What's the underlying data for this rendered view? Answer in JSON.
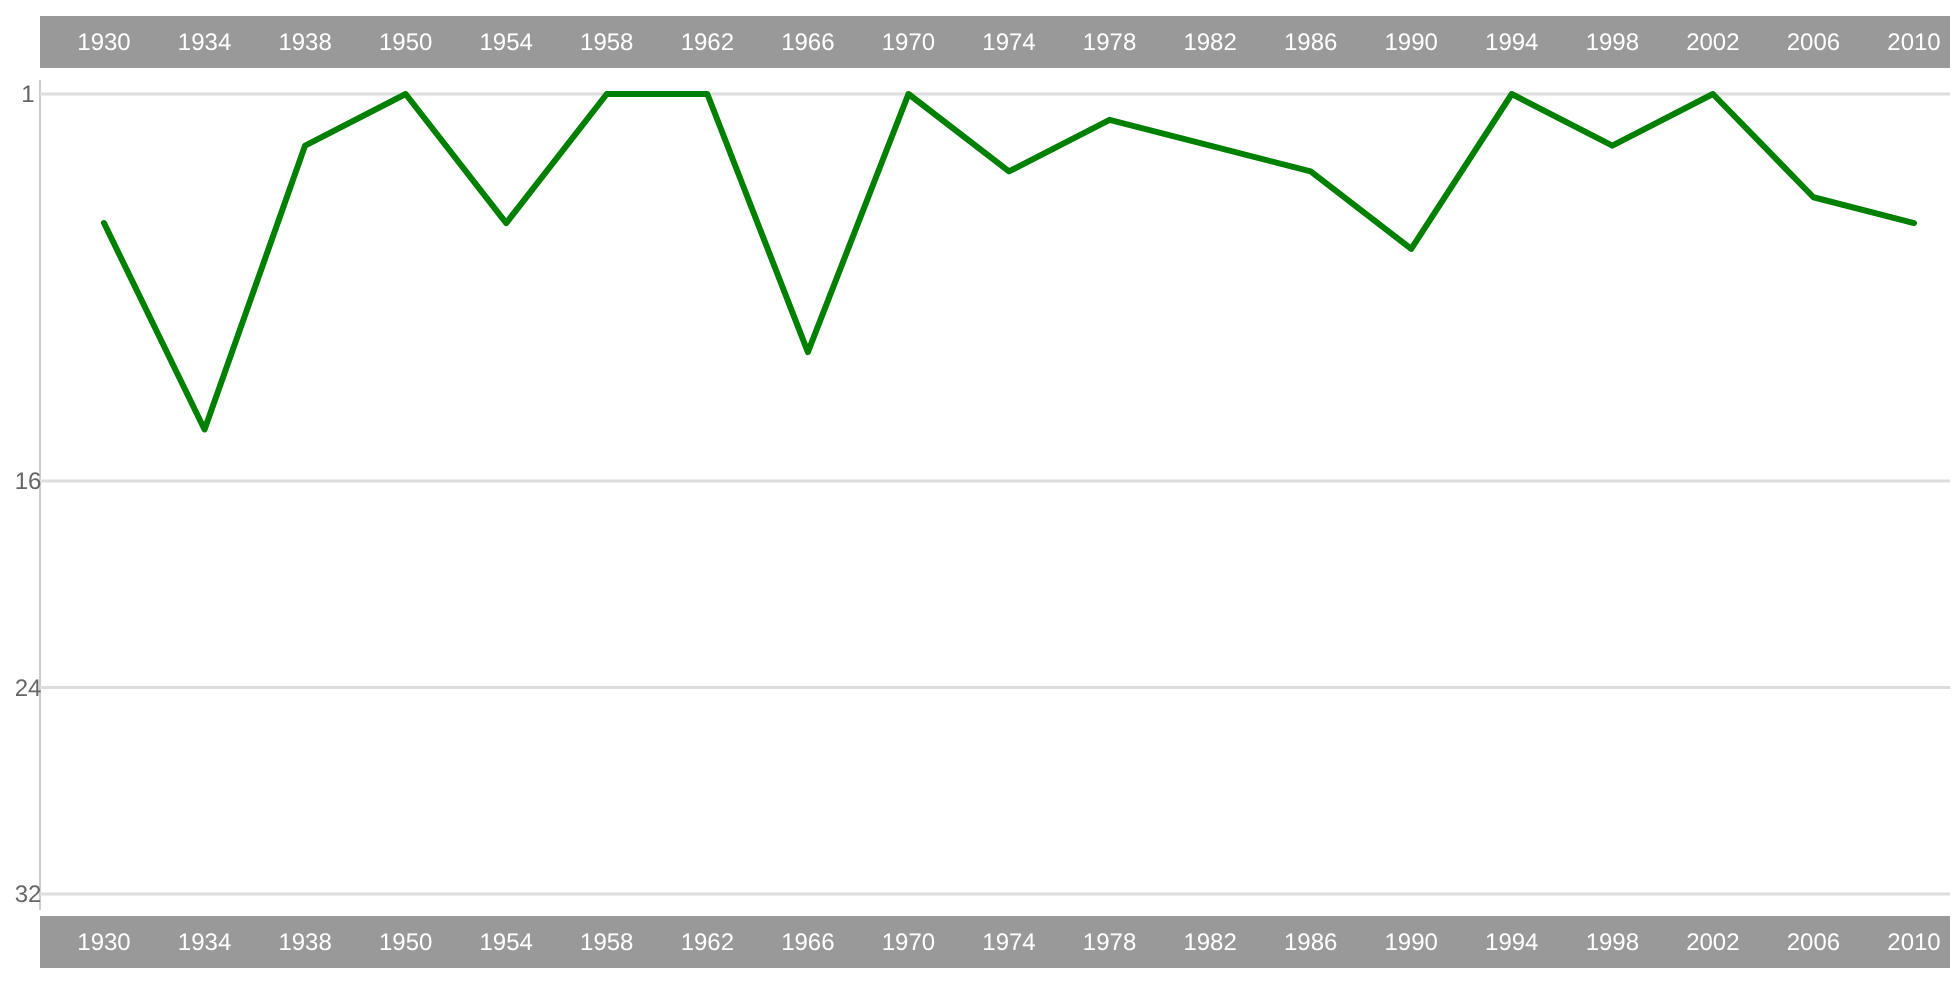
{
  "chart_data": {
    "type": "line",
    "categories": [
      "1930",
      "1934",
      "1938",
      "1950",
      "1954",
      "1958",
      "1962",
      "1966",
      "1970",
      "1974",
      "1978",
      "1982",
      "1986",
      "1990",
      "1994",
      "1998",
      "2002",
      "2006",
      "2010"
    ],
    "series": [
      {
        "color": "#008000",
        "values": [
          6,
          14,
          3,
          1,
          6,
          1,
          1,
          11,
          1,
          4,
          2,
          3,
          4,
          7,
          1,
          3,
          1,
          5,
          6
        ]
      }
    ],
    "ylim": [
      32,
      1
    ],
    "yticks": [
      1,
      16,
      24,
      32
    ],
    "grid": "y",
    "marker": "none",
    "line_style": "solid"
  }
}
